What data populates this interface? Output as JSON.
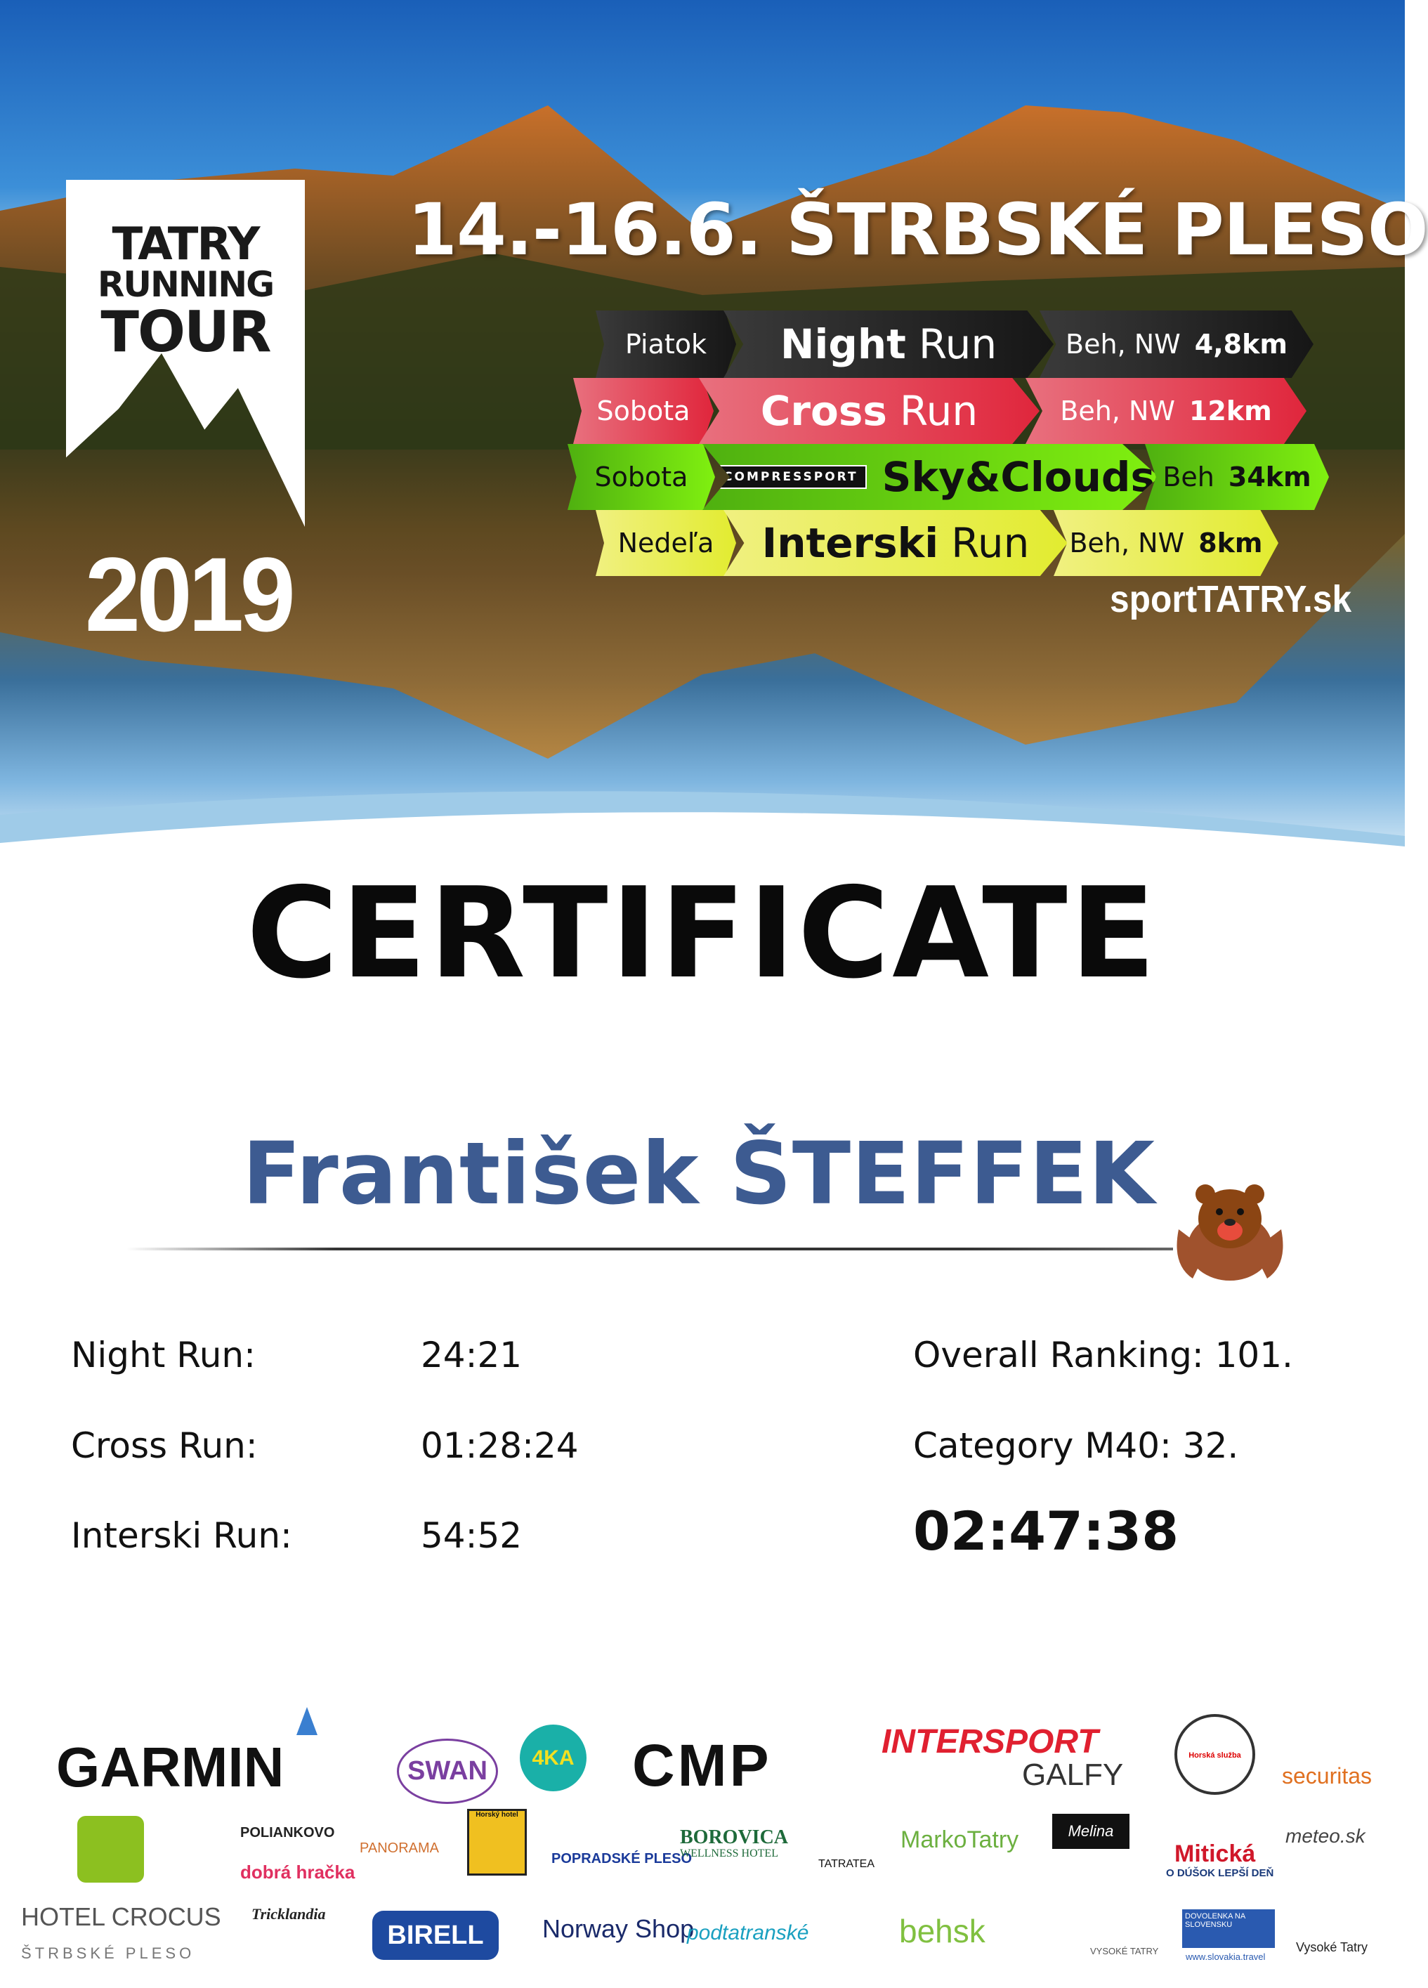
{
  "hero": {
    "logo": {
      "line1": "TATRY",
      "line2": "RUNNING",
      "line3": "TOUR",
      "year": "2019"
    },
    "title": "14.-16.6.  ŠTRBSKÉ PLESO",
    "site": "sportTATRY.sk",
    "races": [
      {
        "day": "Piatok",
        "name_bold": "Night",
        "name_rest": "Run",
        "type": "Beh, NW",
        "distance": "4,8km",
        "color": "#1e1e1e"
      },
      {
        "day": "Sobota",
        "name_bold": "Cross",
        "name_rest": "Run",
        "type": "Beh, NW",
        "distance": "12km",
        "color": "#e0334a"
      },
      {
        "day": "Sobota",
        "sponsor": "COMPRESSPORT",
        "name_bold": "Sky&Clouds",
        "name_rest": "",
        "type": "Beh",
        "distance": "34km",
        "color": "#7be61a"
      },
      {
        "day": "Nedeľa",
        "name_bold": "Interski",
        "name_rest": "Run",
        "type": "Beh, NW",
        "distance": "8km",
        "color": "#e6f040"
      }
    ]
  },
  "certificate": {
    "heading": "CERTIFICATE",
    "name": "František ŠTEFFEK",
    "results": [
      {
        "label": "Night Run:",
        "time": "24:21"
      },
      {
        "label": "Cross Run:",
        "time": "01:28:24"
      },
      {
        "label": "Interski Run:",
        "time": "54:52"
      }
    ],
    "overall_ranking": "Overall Ranking: 101.",
    "category_ranking": "Category M40: 32.",
    "total_time": "02:47:38",
    "name_color": "#3d5b91"
  },
  "sponsors": [
    "GARMIN",
    "SWAN",
    "4KA",
    "CMP",
    "INTERSPORT",
    "GALFY",
    "Horská služba",
    "securitas",
    "HOTEL CROCUS",
    "ŠTRBSKÉ PLESO",
    "POLIANKOVO",
    "dobrá hračka",
    "PANORAMA",
    "Horský hotel",
    "POPRADSKÉ PLESO",
    "BOROVICA",
    "WELLNESS HOTEL",
    "TATRATEA",
    "MarkoTatry",
    "Melina",
    "Mitická",
    "O DÚŠOK LEPŠÍ DEŇ",
    "meteo.sk",
    "Tricklandia",
    "BIRELL",
    "Norway Shop",
    "podtatranské",
    "behsk",
    "VYSOKÉ TATRY",
    "DOVOLENKA NA SLOVENSKU",
    "www.slovakia.travel",
    "Vysoké Tatry"
  ]
}
